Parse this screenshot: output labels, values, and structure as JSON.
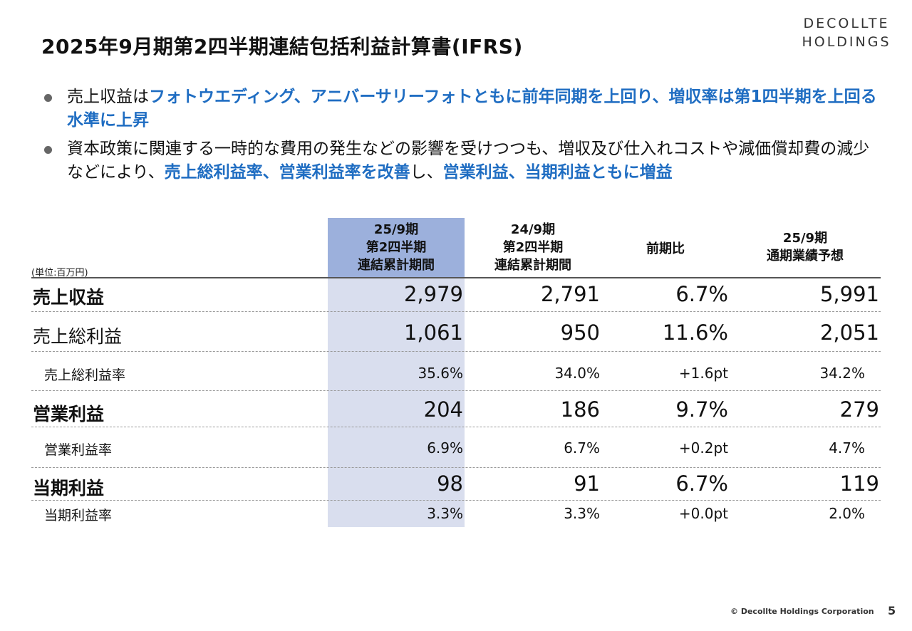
{
  "title": "2025年9月期第2四半期連結包括利益計算書(IFRS)",
  "logo": {
    "line1": "DECOLLTE",
    "line2": "HOLDINGS"
  },
  "bullets": [
    {
      "plain1": "売上収益は",
      "hl1": "フォトウエディング、アニバーサリーフォトともに前年同期を上回り、増収率は第1四半期を上回る水準に上昇"
    },
    {
      "plain1": "資本政策に関連する一時的な費用の発生などの影響を受けつつも、増収及び仕入れコストや減価償却費の減少などにより、",
      "hl1": "売上総利益率、営業利益率を改善",
      "plain2": "し、",
      "hl2": "営業利益、当期利益ともに増益"
    }
  ],
  "table": {
    "unit": "(単位:百万円)",
    "columns": [
      {
        "line1": "25/9期",
        "line2": "第2四半期",
        "line3": "連結累計期間"
      },
      {
        "line1": "24/9期",
        "line2": "第2四半期",
        "line3": "連結累計期間"
      },
      {
        "line1": "前期比"
      },
      {
        "line1": "25/9期",
        "line2": "通期業績予想"
      }
    ],
    "rows": [
      {
        "label": "売上収益",
        "v1": "2,979",
        "v2": "2,791",
        "v3": "6.7%",
        "v4": "5,991"
      },
      {
        "label": "売上総利益",
        "v1": "1,061",
        "v2": "950",
        "v3": "11.6%",
        "v4": "2,051"
      },
      {
        "label": "売上総利益率",
        "v1": "35.6%",
        "v2": "34.0%",
        "v3": "+1.6pt",
        "v4": "34.2%"
      },
      {
        "label": "営業利益",
        "v1": "204",
        "v2": "186",
        "v3": "9.7%",
        "v4": "279"
      },
      {
        "label": "営業利益率",
        "v1": "6.9%",
        "v2": "6.7%",
        "v3": "+0.2pt",
        "v4": "4.7%"
      },
      {
        "label": "当期利益",
        "v1": "98",
        "v2": "91",
        "v3": "6.7%",
        "v4": "119"
      },
      {
        "label": "当期利益率",
        "v1": "3.3%",
        "v2": "3.3%",
        "v3": "+0.0pt",
        "v4": "2.0%"
      }
    ]
  },
  "footer": {
    "copyright": "© Decollte Holdings Corporation",
    "page_number": "5"
  },
  "colors": {
    "accent_text": "#1f6dc2",
    "highlight_header": "#9cb0dc",
    "highlight_column": "#d9deee"
  }
}
